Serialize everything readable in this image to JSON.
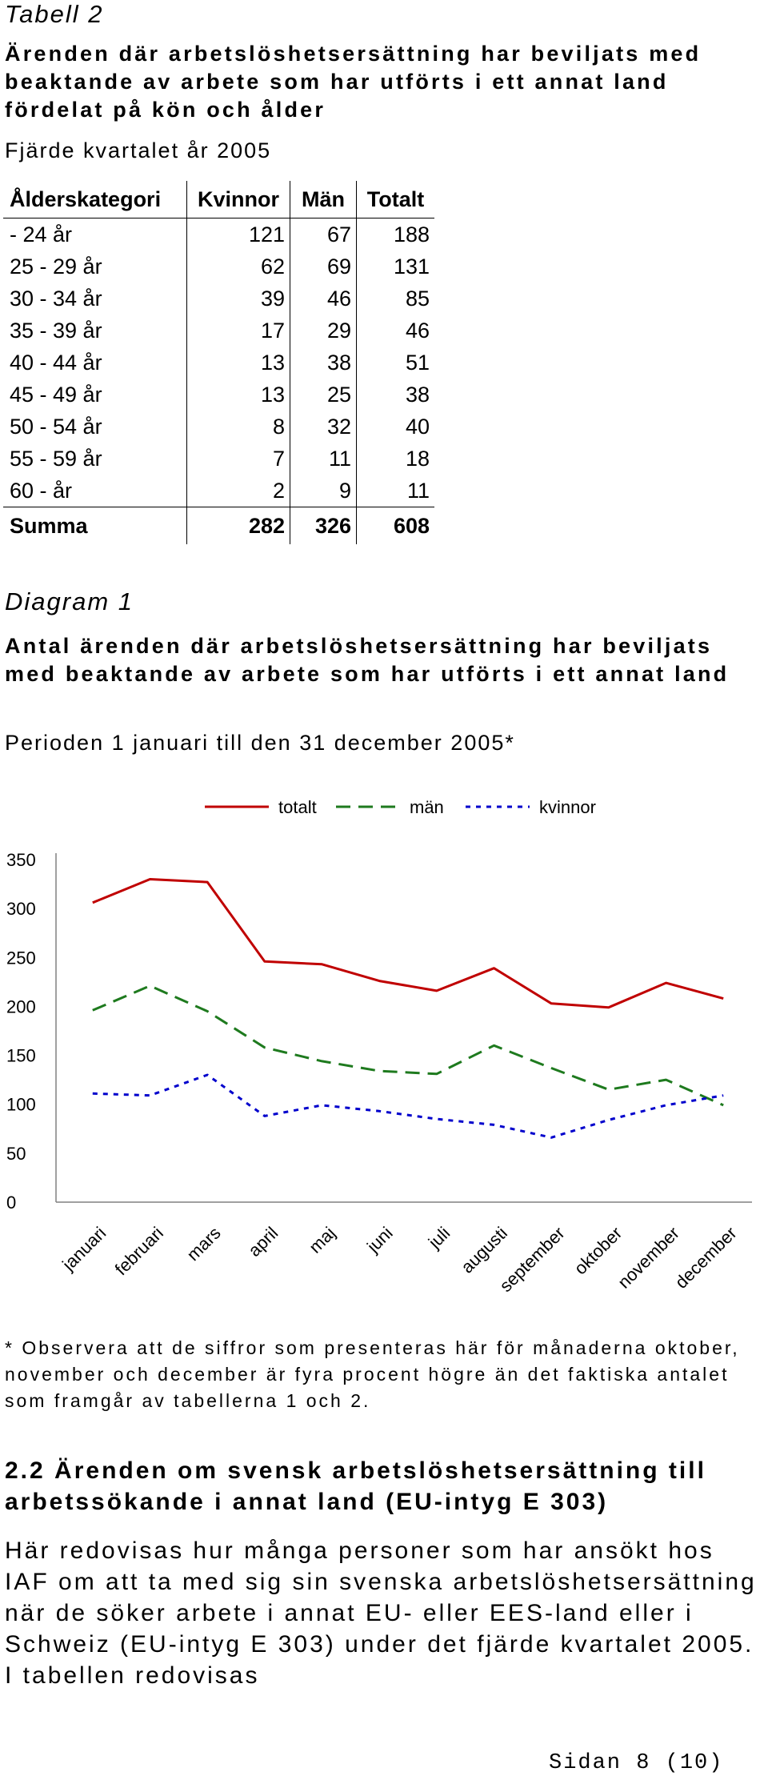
{
  "tabell": {
    "title": "Tabell 2",
    "heading": "Ärenden där arbetslöshetsersättning har beviljats med beaktande av arbete som har utförts i ett annat land fördelat på kön och ålder",
    "period": "Fjärde kvartalet år 2005",
    "columns": [
      "Ålderskategori",
      "Kvinnor",
      "Män",
      "Totalt"
    ],
    "rows": [
      [
        "- 24 år",
        "121",
        "67",
        "188"
      ],
      [
        "25 - 29 år",
        "62",
        "69",
        "131"
      ],
      [
        "30 - 34 år",
        "39",
        "46",
        "85"
      ],
      [
        "35 - 39 år",
        "17",
        "29",
        "46"
      ],
      [
        "40 - 44 år",
        "13",
        "38",
        "51"
      ],
      [
        "45 - 49 år",
        "13",
        "25",
        "38"
      ],
      [
        "50 - 54 år",
        "8",
        "32",
        "40"
      ],
      [
        "55 - 59 år",
        "7",
        "11",
        "18"
      ],
      [
        "60 - år",
        "2",
        "9",
        "11"
      ]
    ],
    "sum": [
      "Summa",
      "282",
      "326",
      "608"
    ]
  },
  "diagram": {
    "title": "Diagram 1",
    "heading": "Antal ärenden där arbetslöshetsersättning har beviljats med beaktande av arbete som har utförts i ett annat land",
    "period": "Perioden 1 januari till den 31 december 2005*"
  },
  "chart_data": {
    "type": "line",
    "categories": [
      "januari",
      "februari",
      "mars",
      "april",
      "maj",
      "juni",
      "juli",
      "augusti",
      "september",
      "oktober",
      "november",
      "december"
    ],
    "series": [
      {
        "name": "totalt",
        "color": "#c00000",
        "style": "solid",
        "values": [
          306,
          330,
          327,
          246,
          243,
          226,
          216,
          239,
          203,
          199,
          224,
          208
        ]
      },
      {
        "name": "män",
        "color": "#1e7a1e",
        "style": "dashed",
        "values": [
          196,
          221,
          195,
          158,
          144,
          134,
          131,
          160,
          137,
          115,
          125,
          99
        ]
      },
      {
        "name": "kvinnor",
        "color": "#0000cc",
        "style": "dotted",
        "values": [
          111,
          109,
          130,
          88,
          99,
          93,
          85,
          79,
          66,
          84,
          99,
          109
        ]
      }
    ],
    "ylim": [
      0,
      350
    ],
    "yticks": [
      0,
      50,
      100,
      150,
      200,
      250,
      300,
      350
    ],
    "grid": false,
    "legend": "top"
  },
  "footnote": "* Observera att de siffror som presenteras här för månaderna oktober, november och december är fyra procent högre än det faktiska antalet som framgår av tabellerna 1 och 2.",
  "section": {
    "heading": "2.2 Ärenden om svensk arbetslöshetsersättning till arbetssökande i annat land (EU-intyg E 303)",
    "body": "Här redovisas hur många personer som har ansökt hos IAF om att ta med sig sin svenska arbetslöshetsersättning när de söker arbete i annat EU- eller EES-land eller i Schweiz (EU-intyg E 303) under det fjärde kvartalet 2005. I tabellen redovisas"
  },
  "page_number": "Sidan 8 (10)"
}
